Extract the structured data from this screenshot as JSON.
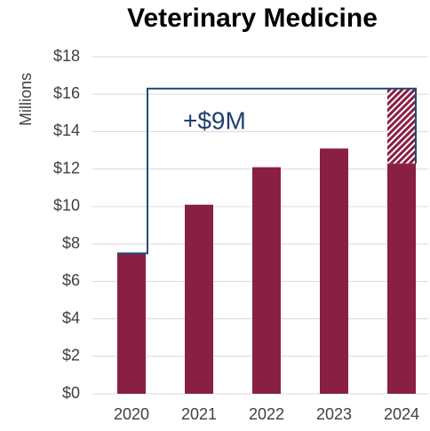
{
  "chart_data": {
    "type": "bar",
    "title": "Veterinary Medicine",
    "ylabel": "Millions",
    "categories": [
      "2020",
      "2021",
      "2022",
      "2023",
      "2024"
    ],
    "series": [
      {
        "color": "#8a1f44",
        "values": [
          7.5,
          10.1,
          12.1,
          13.1,
          12.3
        ]
      },
      {
        "color": "#8a1f44",
        "pattern": "hatch",
        "values": [
          null,
          null,
          null,
          null,
          4.0
        ]
      }
    ],
    "annotation": "+$9M",
    "annotation_color": "#1f4e79",
    "ylim": [
      0,
      18
    ],
    "yticks": [
      {
        "value": 0,
        "label": "$0"
      },
      {
        "value": 2,
        "label": "$2"
      },
      {
        "value": 4,
        "label": "$4"
      },
      {
        "value": 6,
        "label": "$6"
      },
      {
        "value": 8,
        "label": "$8"
      },
      {
        "value": 10,
        "label": "$10"
      },
      {
        "value": 12,
        "label": "$12"
      },
      {
        "value": 14,
        "label": "$14"
      },
      {
        "value": 16,
        "label": "$16"
      },
      {
        "value": 18,
        "label": "$18"
      }
    ],
    "grid": true
  }
}
